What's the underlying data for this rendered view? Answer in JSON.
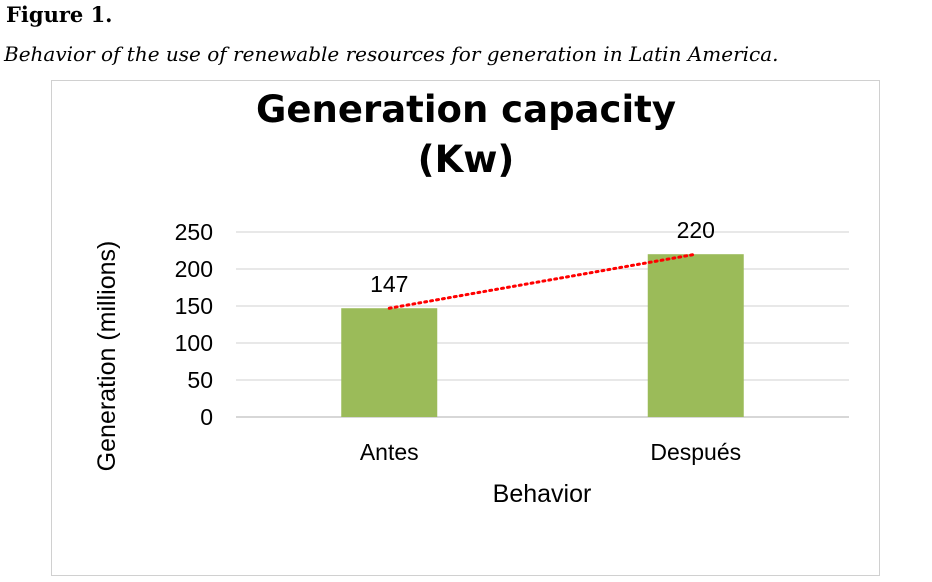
{
  "figure": {
    "label": "Figure 1.",
    "caption": "Behavior of the use of renewable resources for generation in Latin America."
  },
  "chart_data": {
    "type": "bar",
    "title": "Generation capacity (Kw)",
    "title_lines": [
      "Generation capacity",
      "(Kw)"
    ],
    "xlabel": "Behavior",
    "ylabel": "Generation (millions)",
    "categories": [
      "Antes",
      "Después"
    ],
    "values": [
      147,
      220
    ],
    "data_labels": [
      "147",
      "220"
    ],
    "ylim": [
      0,
      250
    ],
    "yticks": [
      0,
      50,
      100,
      150,
      200,
      250
    ],
    "grid": true,
    "trendline": "linear, dotted",
    "colors": {
      "bar": "#9bbb59",
      "trendline": "#ff0000",
      "grid": "#d9d9d9",
      "text": "#000000"
    }
  }
}
